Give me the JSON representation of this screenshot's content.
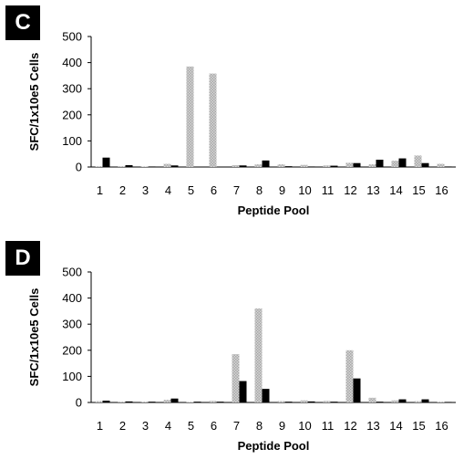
{
  "chart_data": [
    {
      "panel": "C",
      "type": "bar",
      "categories": [
        "1",
        "2",
        "3",
        "4",
        "5",
        "6",
        "7",
        "8",
        "9",
        "10",
        "11",
        "12",
        "13",
        "14",
        "15",
        "16"
      ],
      "series": [
        {
          "fill": "hatched-gray",
          "values": [
            3,
            3,
            2,
            12,
            385,
            358,
            7,
            10,
            10,
            8,
            6,
            16,
            10,
            24,
            44,
            12
          ]
        },
        {
          "fill": "black",
          "values": [
            36,
            7,
            2,
            6,
            0,
            0,
            6,
            25,
            3,
            2,
            5,
            15,
            28,
            33,
            15,
            2
          ]
        }
      ],
      "xlabel": "Peptide Pool",
      "ylabel": "SFC/1x10e5 Cells",
      "ylim": [
        0,
        500
      ],
      "yticks": [
        "0",
        "100",
        "200",
        "300",
        "400",
        "500"
      ],
      "grid": false,
      "colors": {
        "hatched": "#a8a8a8",
        "solid": "#000000"
      }
    },
    {
      "panel": "D",
      "type": "bar",
      "categories": [
        "1",
        "2",
        "3",
        "4",
        "5",
        "6",
        "7",
        "8",
        "9",
        "10",
        "11",
        "12",
        "13",
        "14",
        "15",
        "16"
      ],
      "series": [
        {
          "fill": "hatched-gray",
          "values": [
            5,
            3,
            3,
            10,
            2,
            6,
            185,
            360,
            5,
            8,
            6,
            200,
            18,
            8,
            5,
            3
          ]
        },
        {
          "fill": "black",
          "values": [
            7,
            4,
            3,
            15,
            3,
            3,
            82,
            52,
            3,
            4,
            3,
            92,
            3,
            12,
            12,
            2
          ]
        }
      ],
      "xlabel": "Peptide Pool",
      "ylabel": "SFC/1x10e5 Cells",
      "ylim": [
        0,
        500
      ],
      "yticks": [
        "0",
        "100",
        "200",
        "300",
        "400",
        "500"
      ],
      "grid": false,
      "colors": {
        "hatched": "#a8a8a8",
        "solid": "#000000"
      }
    }
  ]
}
